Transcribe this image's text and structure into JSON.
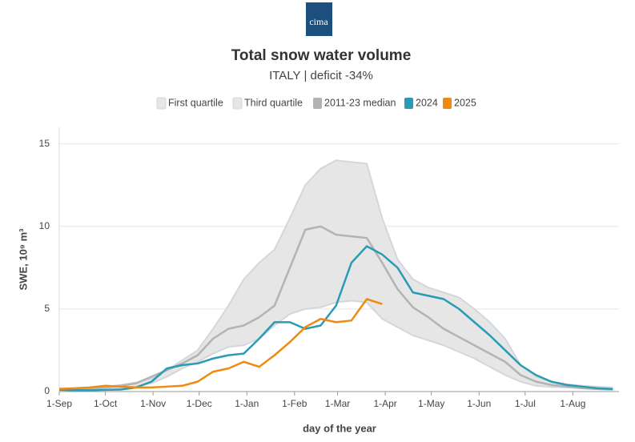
{
  "logo": "cima",
  "chart_data": {
    "type": "line",
    "title": "Total snow water volume",
    "subtitle": "ITALY | deficit -34%",
    "x_label": "day of the year",
    "y_label": "SWE, 10⁹ m³",
    "x": [
      0,
      10,
      20,
      30,
      40,
      50,
      60,
      70,
      80,
      90,
      100,
      110,
      120,
      130,
      140,
      150,
      160,
      170,
      180,
      190,
      200,
      210,
      220,
      230,
      240,
      250,
      260,
      270,
      280,
      290,
      300,
      310,
      320,
      330,
      340,
      350,
      360
    ],
    "xlim": [
      0,
      364
    ],
    "xticks": [
      {
        "value": 0,
        "label": "1-Sep"
      },
      {
        "value": 30,
        "label": "1-Oct"
      },
      {
        "value": 61,
        "label": "1-Nov"
      },
      {
        "value": 91,
        "label": "1-Dec"
      },
      {
        "value": 122,
        "label": "1-Jan"
      },
      {
        "value": 153,
        "label": "1-Feb"
      },
      {
        "value": 181,
        "label": "1-Mar"
      },
      {
        "value": 212,
        "label": "1-Apr"
      },
      {
        "value": 242,
        "label": "1-May"
      },
      {
        "value": 273,
        "label": "1-Jun"
      },
      {
        "value": 303,
        "label": "1-Jul"
      },
      {
        "value": 334,
        "label": "1-Aug"
      }
    ],
    "ylim": [
      0,
      16
    ],
    "yticks": [
      0,
      5,
      10,
      15
    ],
    "grid": true,
    "series": [
      {
        "name": "First quartile",
        "color": "#d3d7dd",
        "values": [
          0.1,
          0.1,
          0.12,
          0.15,
          0.2,
          0.3,
          0.5,
          0.9,
          1.4,
          1.8,
          2.3,
          2.7,
          2.8,
          3.2,
          4.0,
          4.7,
          5.0,
          5.1,
          5.4,
          5.5,
          5.4,
          4.4,
          3.9,
          3.4,
          3.1,
          2.8,
          2.4,
          2.0,
          1.5,
          1.0,
          0.6,
          0.35,
          0.28,
          0.25,
          0.2,
          0.15,
          0.12
        ]
      },
      {
        "name": "Third quartile",
        "color": "#d3d7dd",
        "values": [
          0.2,
          0.2,
          0.25,
          0.3,
          0.4,
          0.55,
          0.8,
          1.3,
          1.9,
          2.5,
          3.8,
          5.2,
          6.8,
          7.8,
          8.6,
          10.5,
          12.5,
          13.5,
          14,
          13.9,
          13.8,
          10.5,
          8,
          6.8,
          6.3,
          6,
          5.7,
          5,
          4.2,
          3.2,
          1.6,
          0.9,
          0.6,
          0.45,
          0.35,
          0.3,
          0.25
        ]
      },
      {
        "name": "2011-23 median",
        "color": "#b3b3b3",
        "values": [
          0.15,
          0.15,
          0.2,
          0.25,
          0.35,
          0.5,
          0.9,
          1.3,
          1.7,
          2.2,
          3.2,
          3.8,
          4.0,
          4.5,
          5.2,
          7.5,
          9.8,
          10,
          9.5,
          9.4,
          9.3,
          7.8,
          6.2,
          5.1,
          4.5,
          3.8,
          3.3,
          2.8,
          2.3,
          1.8,
          1.0,
          0.6,
          0.4,
          0.3,
          0.2,
          0.15,
          0.12
        ]
      },
      {
        "name": "2024",
        "color": "#2a9bb5",
        "values": [
          0.1,
          0.08,
          0.08,
          0.1,
          0.12,
          0.25,
          0.6,
          1.4,
          1.6,
          1.7,
          2.0,
          2.2,
          2.3,
          3.2,
          4.2,
          4.2,
          3.8,
          4.0,
          5.2,
          7.8,
          8.8,
          8.3,
          7.5,
          6,
          5.8,
          5.6,
          5.0,
          4.2,
          3.4,
          2.5,
          1.6,
          1,
          0.6,
          0.4,
          0.3,
          0.2,
          0.15
        ]
      },
      {
        "name": "2025",
        "color": "#f08a10",
        "values": [
          0.15,
          0.2,
          0.25,
          0.35,
          0.3,
          0.25,
          0.25,
          0.3,
          0.35,
          0.6,
          1.2,
          1.4,
          1.8,
          1.5,
          2.2,
          3.0,
          3.9,
          4.4,
          4.2,
          4.3,
          5.6,
          5.3,
          null,
          null,
          null,
          null,
          null,
          null,
          null,
          null,
          null,
          null,
          null,
          null,
          null,
          null,
          null
        ]
      }
    ],
    "band_fill": "#e6e6e6"
  }
}
